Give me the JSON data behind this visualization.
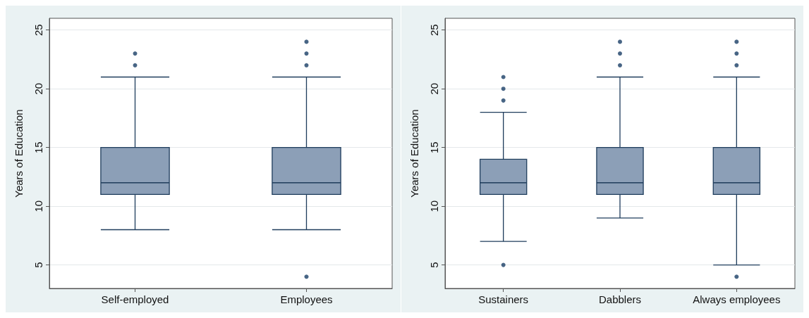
{
  "chart_data": [
    {
      "type": "box",
      "ylabel": "Years of Education",
      "categories": [
        "Self-employed",
        "Employees"
      ],
      "ylim": [
        3,
        26
      ],
      "yticks": [
        5,
        10,
        15,
        20,
        25
      ],
      "grid": "y",
      "color": "#8c9fb7",
      "boxes": [
        {
          "low": 8,
          "q1": 11,
          "median": 12,
          "q3": 15,
          "high": 21,
          "outliers": [
            22,
            23
          ]
        },
        {
          "low": 8,
          "q1": 11,
          "median": 12,
          "q3": 15,
          "high": 21,
          "outliers": [
            4,
            22,
            23,
            24
          ]
        }
      ]
    },
    {
      "type": "box",
      "ylabel": "Years of Education",
      "categories": [
        "Sustainers",
        "Dabblers",
        "Always employees"
      ],
      "ylim": [
        3,
        26
      ],
      "yticks": [
        5,
        10,
        15,
        20,
        25
      ],
      "grid": "y",
      "color": "#8c9fb7",
      "boxes": [
        {
          "low": 7,
          "q1": 11,
          "median": 12,
          "q3": 14,
          "high": 18,
          "outliers": [
            5,
            19,
            20,
            21
          ]
        },
        {
          "low": 9,
          "q1": 11,
          "median": 12,
          "q3": 15,
          "high": 21,
          "outliers": [
            22,
            23,
            24
          ]
        },
        {
          "low": 5,
          "q1": 11,
          "median": 12,
          "q3": 15,
          "high": 21,
          "outliers": [
            4,
            22,
            23,
            24
          ]
        }
      ]
    }
  ]
}
